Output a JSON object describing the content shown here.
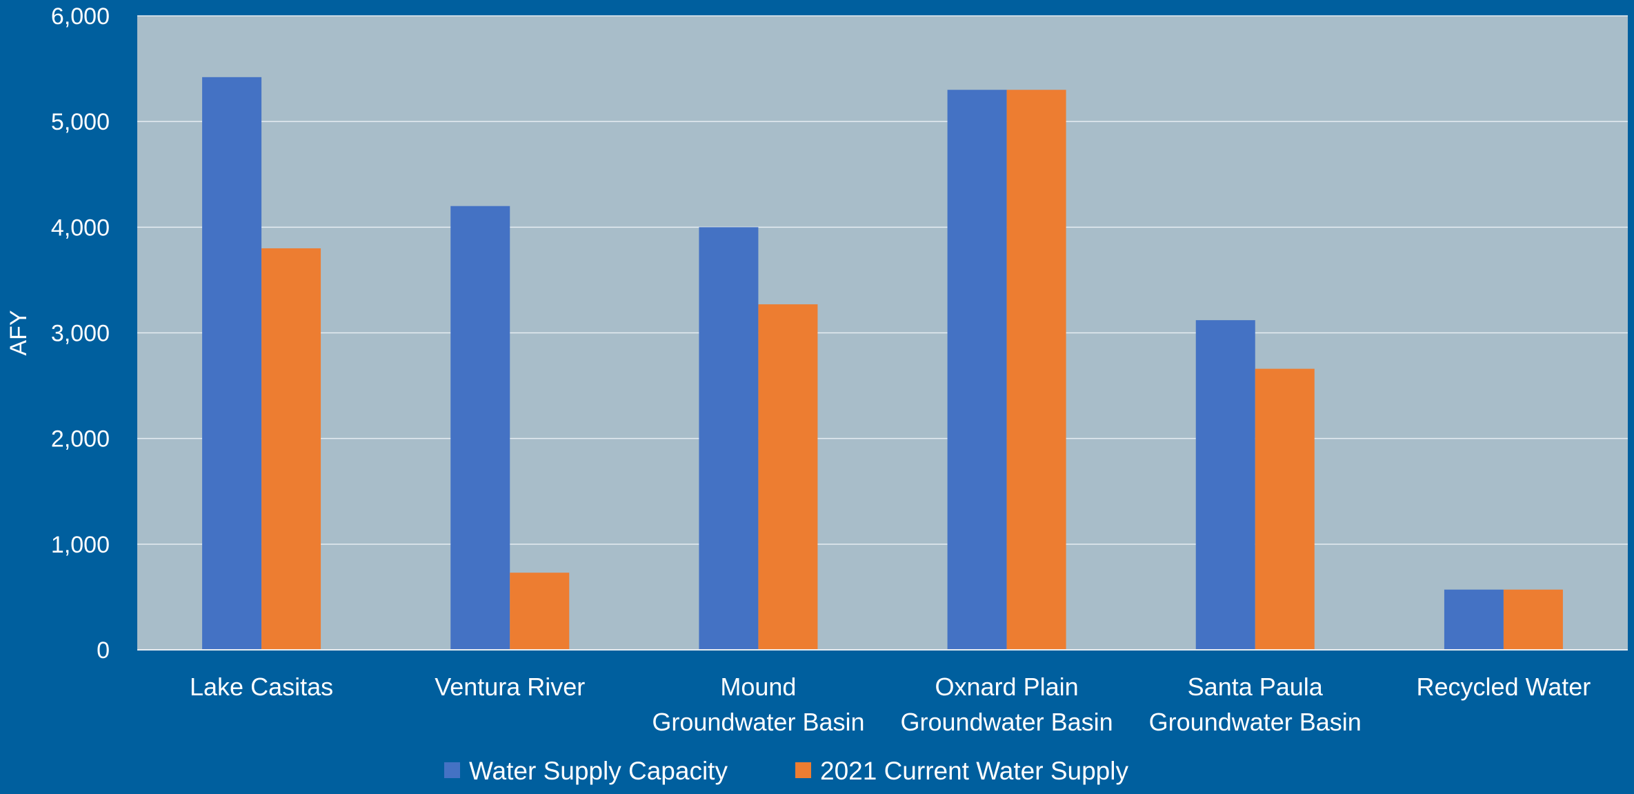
{
  "chart_data": {
    "type": "bar",
    "title": "",
    "xlabel": "",
    "ylabel": "AFY",
    "ylim": [
      0,
      6000
    ],
    "yticks": [
      0,
      1000,
      2000,
      3000,
      4000,
      5000,
      6000
    ],
    "ytick_labels": [
      "0",
      "1,000",
      "2,000",
      "3,000",
      "4,000",
      "5,000",
      "6,000"
    ],
    "grid": true,
    "legend_position": "bottom",
    "categories": [
      [
        "Lake Casitas"
      ],
      [
        "Ventura River"
      ],
      [
        "Mound",
        "Groundwater Basin"
      ],
      [
        "Oxnard Plain",
        "Groundwater Basin"
      ],
      [
        "Santa Paula",
        "Groundwater Basin"
      ],
      [
        "Recycled Water"
      ]
    ],
    "series": [
      {
        "name": "Water Supply Capacity",
        "color": "#4472c4",
        "values": [
          5420,
          4200,
          4000,
          5300,
          3120,
          570
        ]
      },
      {
        "name": "2021 Current Water Supply",
        "color": "#ed7d31",
        "values": [
          3800,
          730,
          3270,
          5300,
          2660,
          570
        ]
      }
    ],
    "colors": {
      "background": "#005f9e",
      "plot_area": "#a8bdc9",
      "gridline": "#e6edf2",
      "text": "#ffffff"
    }
  }
}
